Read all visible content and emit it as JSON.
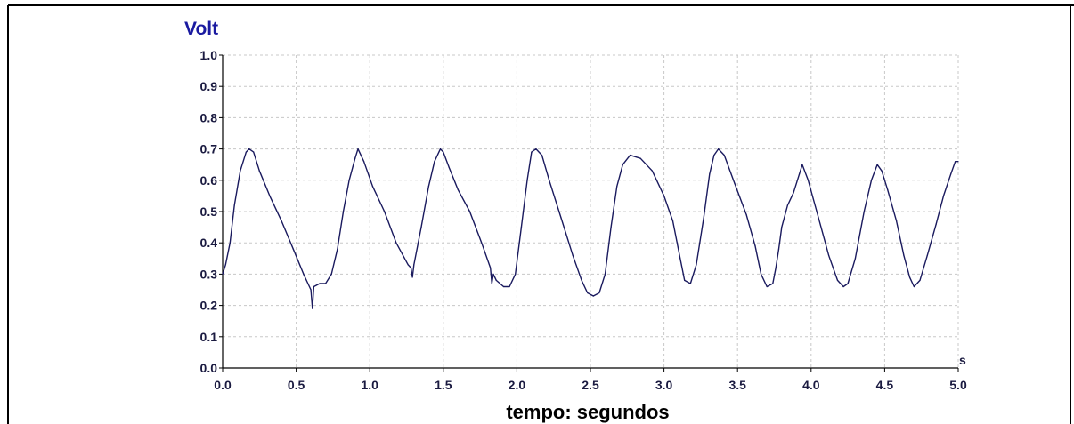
{
  "chart_data": {
    "type": "line",
    "title": "",
    "ylabel": "Volt",
    "xlabel": "tempo: segundos",
    "x_unit": "s",
    "xlim": [
      0.0,
      5.0
    ],
    "ylim": [
      0.0,
      1.0
    ],
    "grid": true,
    "x_ticks": [
      "0.0",
      "0.5",
      "1.0",
      "1.5",
      "2.0",
      "2.5",
      "3.0",
      "3.5",
      "4.0",
      "4.5",
      "5.0"
    ],
    "y_ticks": [
      "0.0",
      "0.1",
      "0.2",
      "0.3",
      "0.4",
      "0.5",
      "0.6",
      "0.7",
      "0.8",
      "0.9",
      "1.0"
    ],
    "series": [
      {
        "color": "#1a1a5e",
        "x": [
          0.0,
          0.02,
          0.05,
          0.08,
          0.12,
          0.16,
          0.18,
          0.21,
          0.25,
          0.32,
          0.4,
          0.48,
          0.55,
          0.58,
          0.6,
          0.61,
          0.62,
          0.66,
          0.7,
          0.74,
          0.78,
          0.82,
          0.86,
          0.9,
          0.92,
          0.96,
          1.02,
          1.1,
          1.18,
          1.26,
          1.28,
          1.29,
          1.3,
          1.35,
          1.4,
          1.44,
          1.48,
          1.5,
          1.54,
          1.6,
          1.68,
          1.76,
          1.82,
          1.83,
          1.84,
          1.86,
          1.91,
          1.95,
          1.99,
          2.03,
          2.07,
          2.1,
          2.13,
          2.17,
          2.22,
          2.3,
          2.38,
          2.44,
          2.48,
          2.52,
          2.56,
          2.6,
          2.64,
          2.68,
          2.72,
          2.77,
          2.84,
          2.92,
          3.0,
          3.06,
          3.11,
          3.14,
          3.18,
          3.22,
          3.27,
          3.31,
          3.34,
          3.37,
          3.41,
          3.48,
          3.56,
          3.62,
          3.66,
          3.7,
          3.74,
          3.76,
          3.78,
          3.8,
          3.84,
          3.88,
          3.92,
          3.94,
          3.98,
          4.05,
          4.12,
          4.18,
          4.22,
          4.25,
          4.3,
          4.36,
          4.41,
          4.45,
          4.48,
          4.52,
          4.58,
          4.63,
          4.67,
          4.7,
          4.74,
          4.79,
          4.85,
          4.9,
          4.95,
          4.98,
          5.0
        ],
        "y": [
          0.3,
          0.33,
          0.4,
          0.52,
          0.63,
          0.69,
          0.7,
          0.69,
          0.63,
          0.55,
          0.47,
          0.38,
          0.3,
          0.27,
          0.25,
          0.19,
          0.26,
          0.27,
          0.27,
          0.3,
          0.38,
          0.5,
          0.6,
          0.67,
          0.7,
          0.66,
          0.58,
          0.5,
          0.4,
          0.33,
          0.32,
          0.29,
          0.33,
          0.45,
          0.58,
          0.66,
          0.7,
          0.69,
          0.64,
          0.57,
          0.5,
          0.4,
          0.32,
          0.27,
          0.3,
          0.28,
          0.26,
          0.26,
          0.3,
          0.45,
          0.6,
          0.69,
          0.7,
          0.68,
          0.6,
          0.48,
          0.36,
          0.28,
          0.24,
          0.23,
          0.24,
          0.3,
          0.45,
          0.58,
          0.65,
          0.68,
          0.67,
          0.63,
          0.55,
          0.47,
          0.35,
          0.28,
          0.27,
          0.33,
          0.48,
          0.62,
          0.68,
          0.7,
          0.68,
          0.59,
          0.49,
          0.39,
          0.3,
          0.26,
          0.27,
          0.32,
          0.38,
          0.45,
          0.52,
          0.56,
          0.62,
          0.65,
          0.6,
          0.48,
          0.36,
          0.28,
          0.26,
          0.27,
          0.35,
          0.5,
          0.6,
          0.65,
          0.63,
          0.57,
          0.47,
          0.36,
          0.29,
          0.26,
          0.28,
          0.36,
          0.46,
          0.55,
          0.62,
          0.66,
          0.66
        ]
      }
    ]
  },
  "colors": {
    "axis_title": "#1a1aa0",
    "tick_label": "#1a1a40",
    "line": "#1a1a5e",
    "grid": "#c8c8c8",
    "frame": "#000000"
  }
}
